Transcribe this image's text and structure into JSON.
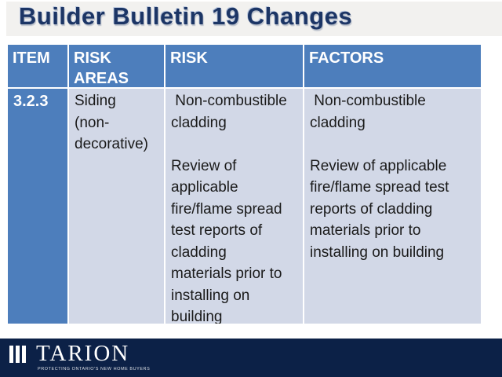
{
  "slide": {
    "title": "Builder Bulletin 19 Changes"
  },
  "table": {
    "headers": [
      "ITEM",
      "RISK AREAS",
      "RISK",
      "FACTORS"
    ],
    "row": {
      "item": "3.2.3",
      "risk_areas": "Siding\n(non-\ndecorative)",
      "risk": " Non-combustible\ncladding\n\nReview of\napplicable\nfire/flame spread\ntest reports of\ncladding\nmaterials prior to\ninstalling on\nbuilding",
      "factors": " Non-combustible\ncladding\n\nReview of applicable\nfire/flame spread test\nreports of cladding\nmaterials prior to\ninstalling on building"
    }
  },
  "footer": {
    "logo_text": "TARION",
    "tagline": "PROTECTING ONTARIO'S NEW HOME BUYERS"
  },
  "colors": {
    "title_text": "#1c3565",
    "title_band": "#f2f1ef",
    "table_header_blue": "#4d7ebc",
    "table_body_light": "#d2d8e7",
    "footer_navy": "#0c2147"
  }
}
